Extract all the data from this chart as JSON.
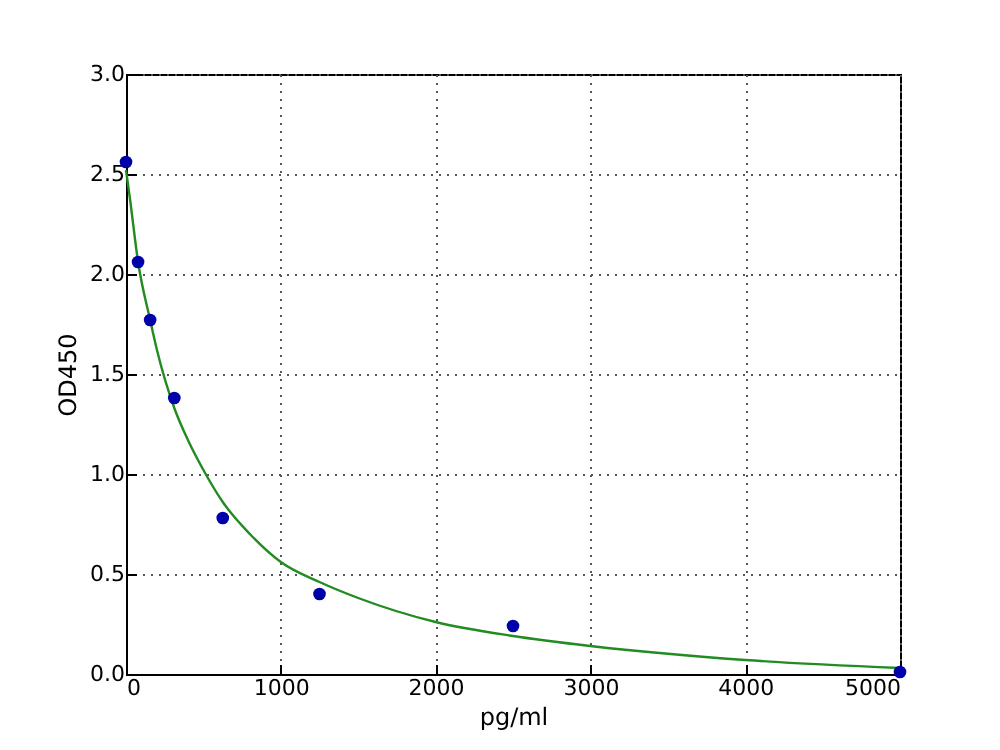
{
  "chart_data": {
    "type": "scatter",
    "xlabel": "pg/ml",
    "ylabel": "OD450",
    "xlim": [
      0,
      5000
    ],
    "ylim": [
      0,
      3.0
    ],
    "xticks": [
      0,
      1000,
      2000,
      3000,
      4000,
      5000
    ],
    "yticks": [
      {
        "value": 0,
        "label": "0.0"
      },
      {
        "value": 0.5,
        "label": "0.5"
      },
      {
        "value": 1,
        "label": "1.0"
      },
      {
        "value": 1.5,
        "label": "1.5"
      },
      {
        "value": 2,
        "label": "2.0"
      },
      {
        "value": 2.5,
        "label": "2.5"
      },
      {
        "value": 3,
        "label": "3.0"
      }
    ],
    "grid": true,
    "series": [
      {
        "color": "#0000aa",
        "marker": "circle",
        "x": [
          0,
          78,
          156,
          312,
          625,
          1250,
          2500,
          5000
        ],
        "values": [
          2.56,
          2.06,
          1.77,
          1.38,
          0.78,
          0.4,
          0.24,
          0.01
        ]
      },
      {
        "type": "line",
        "color": "#228b22",
        "x": [
          0,
          25,
          78,
          156,
          200,
          312,
          400,
          500,
          625,
          800,
          1000,
          1250,
          1500,
          2000,
          2500,
          3000,
          4000,
          5000
        ],
        "values": [
          2.52,
          2.38,
          2.06,
          1.77,
          1.62,
          1.33,
          1.17,
          1.02,
          0.86,
          0.7,
          0.56,
          0.46,
          0.38,
          0.26,
          0.19,
          0.14,
          0.07,
          0.03
        ]
      }
    ]
  }
}
